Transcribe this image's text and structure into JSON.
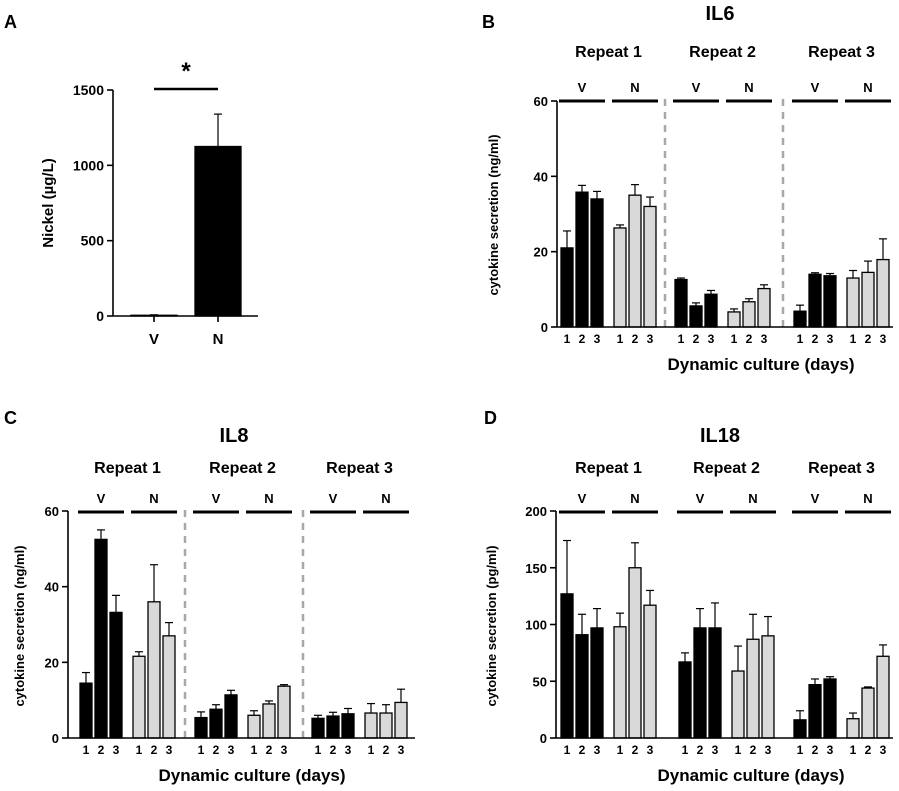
{
  "chart_data": [
    {
      "panel": "A",
      "type": "bar",
      "title": "",
      "ylabel": "Nickel (µg/L)",
      "xlabel": "",
      "categories": [
        "V",
        "N"
      ],
      "values": [
        5,
        1125
      ],
      "errors": [
        3,
        215
      ],
      "ylim": [
        0,
        1500
      ],
      "yticks": [
        "0",
        "500",
        "1000",
        "1500"
      ],
      "significance": "*",
      "colors": [
        "#000000",
        "#000000"
      ]
    },
    {
      "panel": "B",
      "type": "bar",
      "title": "IL6",
      "ylabel": "cytokine secretion (ng/ml)",
      "xlabel": "Dynamic culture (days)",
      "ylim": [
        0,
        60
      ],
      "yticks": [
        "0",
        "20",
        "40",
        "60"
      ],
      "repeats": [
        {
          "label": "Repeat 1",
          "groups": [
            {
              "label": "V",
              "days": [
                "1",
                "2",
                "3"
              ],
              "values": [
                21,
                35.8,
                34
              ],
              "errors": [
                4.5,
                1.8,
                2
              ]
            },
            {
              "label": "N",
              "days": [
                "1",
                "2",
                "3"
              ],
              "values": [
                26.3,
                35,
                32
              ],
              "errors": [
                0.8,
                2.8,
                2.5
              ]
            }
          ]
        },
        {
          "label": "Repeat 2",
          "groups": [
            {
              "label": "V",
              "days": [
                "1",
                "2",
                "3"
              ],
              "values": [
                12.6,
                5.6,
                8.7
              ],
              "errors": [
                0.4,
                0.8,
                1
              ]
            },
            {
              "label": "N",
              "days": [
                "1",
                "2",
                "3"
              ],
              "values": [
                4,
                6.7,
                10.2
              ],
              "errors": [
                0.8,
                0.8,
                1
              ]
            }
          ]
        },
        {
          "label": "Repeat 3",
          "groups": [
            {
              "label": "V",
              "days": [
                "1",
                "2",
                "3"
              ],
              "values": [
                4.2,
                14,
                13.6
              ],
              "errors": [
                1.6,
                0.4,
                0.6
              ]
            },
            {
              "label": "N",
              "days": [
                "1",
                "2",
                "3"
              ],
              "values": [
                13,
                14.5,
                17.9
              ],
              "errors": [
                2,
                3,
                5.5
              ]
            }
          ]
        }
      ]
    },
    {
      "panel": "C",
      "type": "bar",
      "title": "IL8",
      "ylabel": "cytokine secretion (ng/ml)",
      "xlabel": "Dynamic culture (days)",
      "ylim": [
        0,
        60
      ],
      "yticks": [
        "0",
        "20",
        "40",
        "60"
      ],
      "repeats": [
        {
          "label": "Repeat 1",
          "groups": [
            {
              "label": "V",
              "days": [
                "1",
                "2",
                "3"
              ],
              "values": [
                14.5,
                52.5,
                33.2
              ],
              "errors": [
                2.8,
                2.5,
                4.5
              ]
            },
            {
              "label": "N",
              "days": [
                "1",
                "2",
                "3"
              ],
              "values": [
                21.6,
                36,
                27
              ],
              "errors": [
                1.2,
                9.8,
                3.5
              ]
            }
          ]
        },
        {
          "label": "Repeat 2",
          "groups": [
            {
              "label": "V",
              "days": [
                "1",
                "2",
                "3"
              ],
              "values": [
                5.4,
                7.6,
                11.4
              ],
              "errors": [
                1.5,
                1.2,
                1.2
              ]
            },
            {
              "label": "N",
              "days": [
                "1",
                "2",
                "3"
              ],
              "values": [
                6,
                9,
                13.7
              ],
              "errors": [
                1.2,
                0.8,
                0.4
              ]
            }
          ]
        },
        {
          "label": "Repeat 3",
          "groups": [
            {
              "label": "V",
              "days": [
                "1",
                "2",
                "3"
              ],
              "values": [
                5.2,
                5.8,
                6.4
              ],
              "errors": [
                0.8,
                1,
                1.4
              ]
            },
            {
              "label": "N",
              "days": [
                "1",
                "2",
                "3"
              ],
              "values": [
                6.6,
                6.6,
                9.4
              ],
              "errors": [
                2.5,
                2.2,
                3.5
              ]
            }
          ]
        }
      ]
    },
    {
      "panel": "D",
      "type": "bar",
      "title": "IL18",
      "ylabel": "cytokine secretion (pg/ml)",
      "xlabel": "Dynamic culture (days)",
      "ylim": [
        0,
        200
      ],
      "yticks": [
        "0",
        "50",
        "100",
        "150",
        "200"
      ],
      "repeats": [
        {
          "label": "Repeat 1",
          "groups": [
            {
              "label": "V",
              "days": [
                "1",
                "2",
                "3"
              ],
              "values": [
                127,
                91,
                97
              ],
              "errors": [
                47,
                18,
                17
              ]
            },
            {
              "label": "N",
              "days": [
                "1",
                "2",
                "3"
              ],
              "values": [
                98,
                150,
                117
              ],
              "errors": [
                12,
                22,
                13
              ]
            }
          ]
        },
        {
          "label": "Repeat 2",
          "groups": [
            {
              "label": "V",
              "days": [
                "1",
                "2",
                "3"
              ],
              "values": [
                67,
                97,
                97
              ],
              "errors": [
                8,
                17,
                22
              ]
            },
            {
              "label": "N",
              "days": [
                "1",
                "2",
                "3"
              ],
              "values": [
                59,
                87,
                90
              ],
              "errors": [
                22,
                22,
                17
              ]
            }
          ]
        },
        {
          "label": "Repeat 3",
          "groups": [
            {
              "label": "V",
              "days": [
                "1",
                "2",
                "3"
              ],
              "values": [
                16,
                47,
                52
              ],
              "errors": [
                8,
                5,
                2
              ]
            },
            {
              "label": "N",
              "days": [
                "1",
                "2",
                "3"
              ],
              "values": [
                17,
                44,
                72
              ],
              "errors": [
                5,
                1,
                10
              ]
            }
          ]
        }
      ]
    }
  ],
  "colors": {
    "vehicle": "#000000",
    "nickel": "#d9d9d9",
    "divider": "#a8a8a8",
    "axis": "#000000"
  }
}
